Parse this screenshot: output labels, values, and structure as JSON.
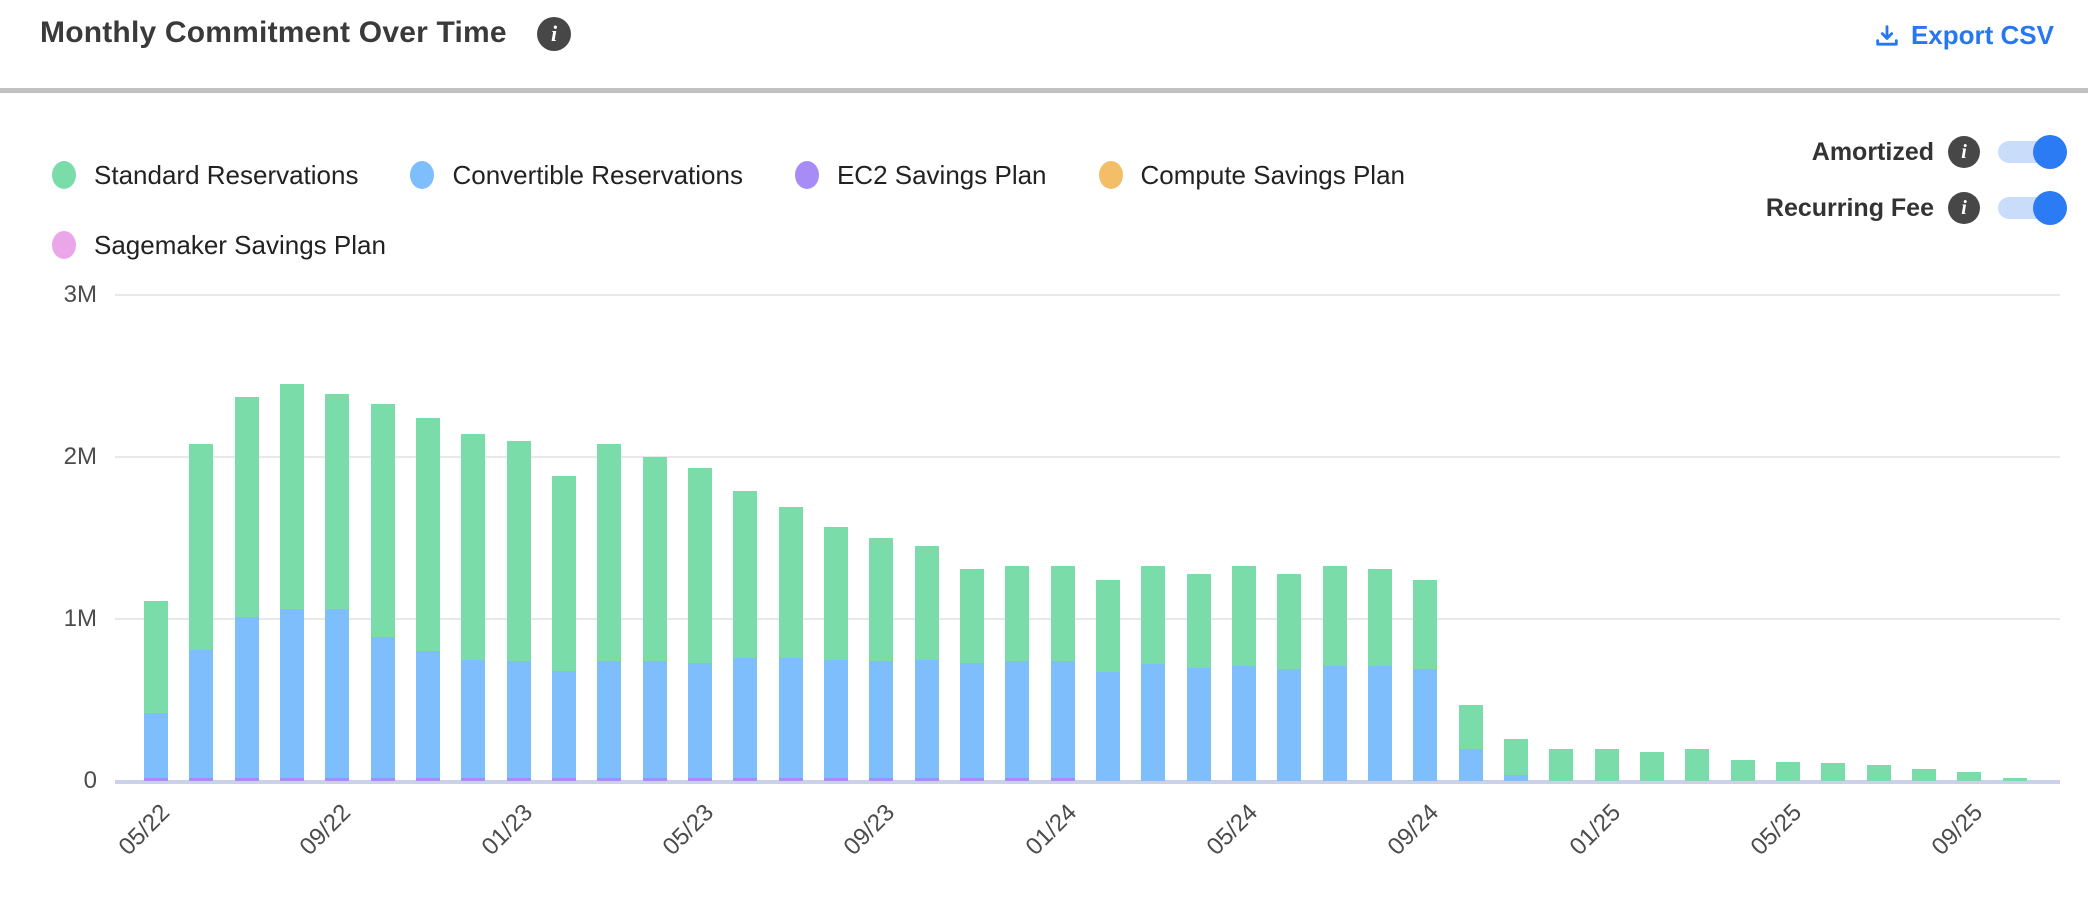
{
  "header": {
    "title": "Monthly Commitment Over Time",
    "export_label": "Export CSV"
  },
  "toggles": [
    {
      "label": "Amortized",
      "state": "on"
    },
    {
      "label": "Recurring Fee",
      "state": "on"
    }
  ],
  "colors": {
    "standard_reservations": "#7adda9",
    "convertible_reservations": "#7ebefc",
    "ec2_savings_plan": "#a78cf7",
    "compute_savings_plan": "#f4be68",
    "sagemaker_savings_plan": "#eba6e9",
    "accent_blue": "#2677f2",
    "toggle_track": "#c9dcfa",
    "toggle_knob": "#2b7cf4",
    "gridline": "#e8e8e8",
    "axis_line": "#cbd2e8",
    "info_badge": "#474747"
  },
  "chart_data": {
    "type": "bar",
    "stacked": true,
    "title": "Monthly Commitment Over Time",
    "xlabel": "",
    "ylabel": "",
    "unit": "USD, millions",
    "ylim": [
      0,
      3.0
    ],
    "grid": true,
    "legend_position": "top-left",
    "x": [
      "05/22",
      "06/22",
      "07/22",
      "08/22",
      "09/22",
      "10/22",
      "11/22",
      "12/22",
      "01/23",
      "02/23",
      "03/23",
      "04/23",
      "05/23",
      "06/23",
      "07/23",
      "08/23",
      "09/23",
      "10/23",
      "11/23",
      "12/23",
      "01/24",
      "02/24",
      "03/24",
      "04/24",
      "05/24",
      "06/24",
      "07/24",
      "08/24",
      "09/24",
      "10/24",
      "11/24",
      "12/24",
      "01/25",
      "02/25",
      "03/25",
      "04/25",
      "05/25",
      "06/25",
      "07/25",
      "08/25",
      "09/25",
      "10/25"
    ],
    "x_tick_every": 4,
    "x_tick_labels": [
      "05/22",
      "09/22",
      "01/23",
      "05/23",
      "09/23",
      "01/24",
      "05/24",
      "09/24",
      "01/25",
      "05/25",
      "09/25"
    ],
    "y_ticks": [
      {
        "label": "3M",
        "value": 3.0
      },
      {
        "label": "2M",
        "value": 2.0
      },
      {
        "label": "1M",
        "value": 1.0
      },
      {
        "label": "0",
        "value": 0.0
      }
    ],
    "series": [
      {
        "name": "EC2 Savings Plan",
        "color": "#a78cf7",
        "values": [
          0.02,
          0.02,
          0.02,
          0.02,
          0.02,
          0.02,
          0.02,
          0.02,
          0.02,
          0.02,
          0.02,
          0.02,
          0.02,
          0.02,
          0.02,
          0.02,
          0.02,
          0.02,
          0.02,
          0.02,
          0.02,
          0,
          0,
          0,
          0,
          0,
          0,
          0,
          0,
          0,
          0,
          0,
          0,
          0,
          0,
          0,
          0,
          0,
          0,
          0,
          0,
          0
        ]
      },
      {
        "name": "Convertible Reservations",
        "color": "#7ebefc",
        "values": [
          0.4,
          0.79,
          0.99,
          1.04,
          1.04,
          0.87,
          0.78,
          0.73,
          0.72,
          0.66,
          0.72,
          0.72,
          0.71,
          0.74,
          0.74,
          0.73,
          0.72,
          0.73,
          0.71,
          0.72,
          0.72,
          0.67,
          0.72,
          0.7,
          0.71,
          0.69,
          0.71,
          0.71,
          0.69,
          0.2,
          0.04,
          0,
          0,
          0,
          0,
          0,
          0,
          0,
          0,
          0,
          0,
          0
        ]
      },
      {
        "name": "Standard Reservations",
        "color": "#7adda9",
        "values": [
          0.69,
          1.27,
          1.36,
          1.39,
          1.33,
          1.44,
          1.44,
          1.39,
          1.36,
          1.2,
          1.34,
          1.26,
          1.2,
          1.03,
          0.93,
          0.82,
          0.76,
          0.7,
          0.58,
          0.59,
          0.59,
          0.57,
          0.61,
          0.58,
          0.62,
          0.59,
          0.62,
          0.6,
          0.55,
          0.27,
          0.22,
          0.2,
          0.2,
          0.18,
          0.2,
          0.13,
          0.12,
          0.11,
          0.1,
          0.075,
          0.055,
          0.02
        ]
      },
      {
        "name": "Compute Savings Plan",
        "color": "#f4be68",
        "values": [
          0,
          0,
          0,
          0,
          0,
          0,
          0,
          0,
          0,
          0,
          0,
          0,
          0,
          0,
          0,
          0,
          0,
          0,
          0,
          0,
          0,
          0,
          0,
          0,
          0,
          0,
          0,
          0,
          0,
          0,
          0,
          0,
          0,
          0,
          0,
          0,
          0,
          0,
          0,
          0,
          0,
          0
        ]
      },
      {
        "name": "Sagemaker Savings Plan",
        "color": "#eba6e9",
        "values": [
          0,
          0,
          0,
          0,
          0,
          0,
          0,
          0,
          0,
          0,
          0,
          0,
          0,
          0,
          0,
          0,
          0,
          0,
          0,
          0,
          0,
          0,
          0,
          0,
          0,
          0,
          0,
          0,
          0,
          0,
          0,
          0,
          0,
          0,
          0,
          0,
          0,
          0,
          0,
          0,
          0,
          0
        ]
      }
    ],
    "legend_order": [
      "Standard Reservations",
      "Convertible Reservations",
      "EC2 Savings Plan",
      "Compute Savings Plan",
      "Sagemaker Savings Plan"
    ]
  }
}
